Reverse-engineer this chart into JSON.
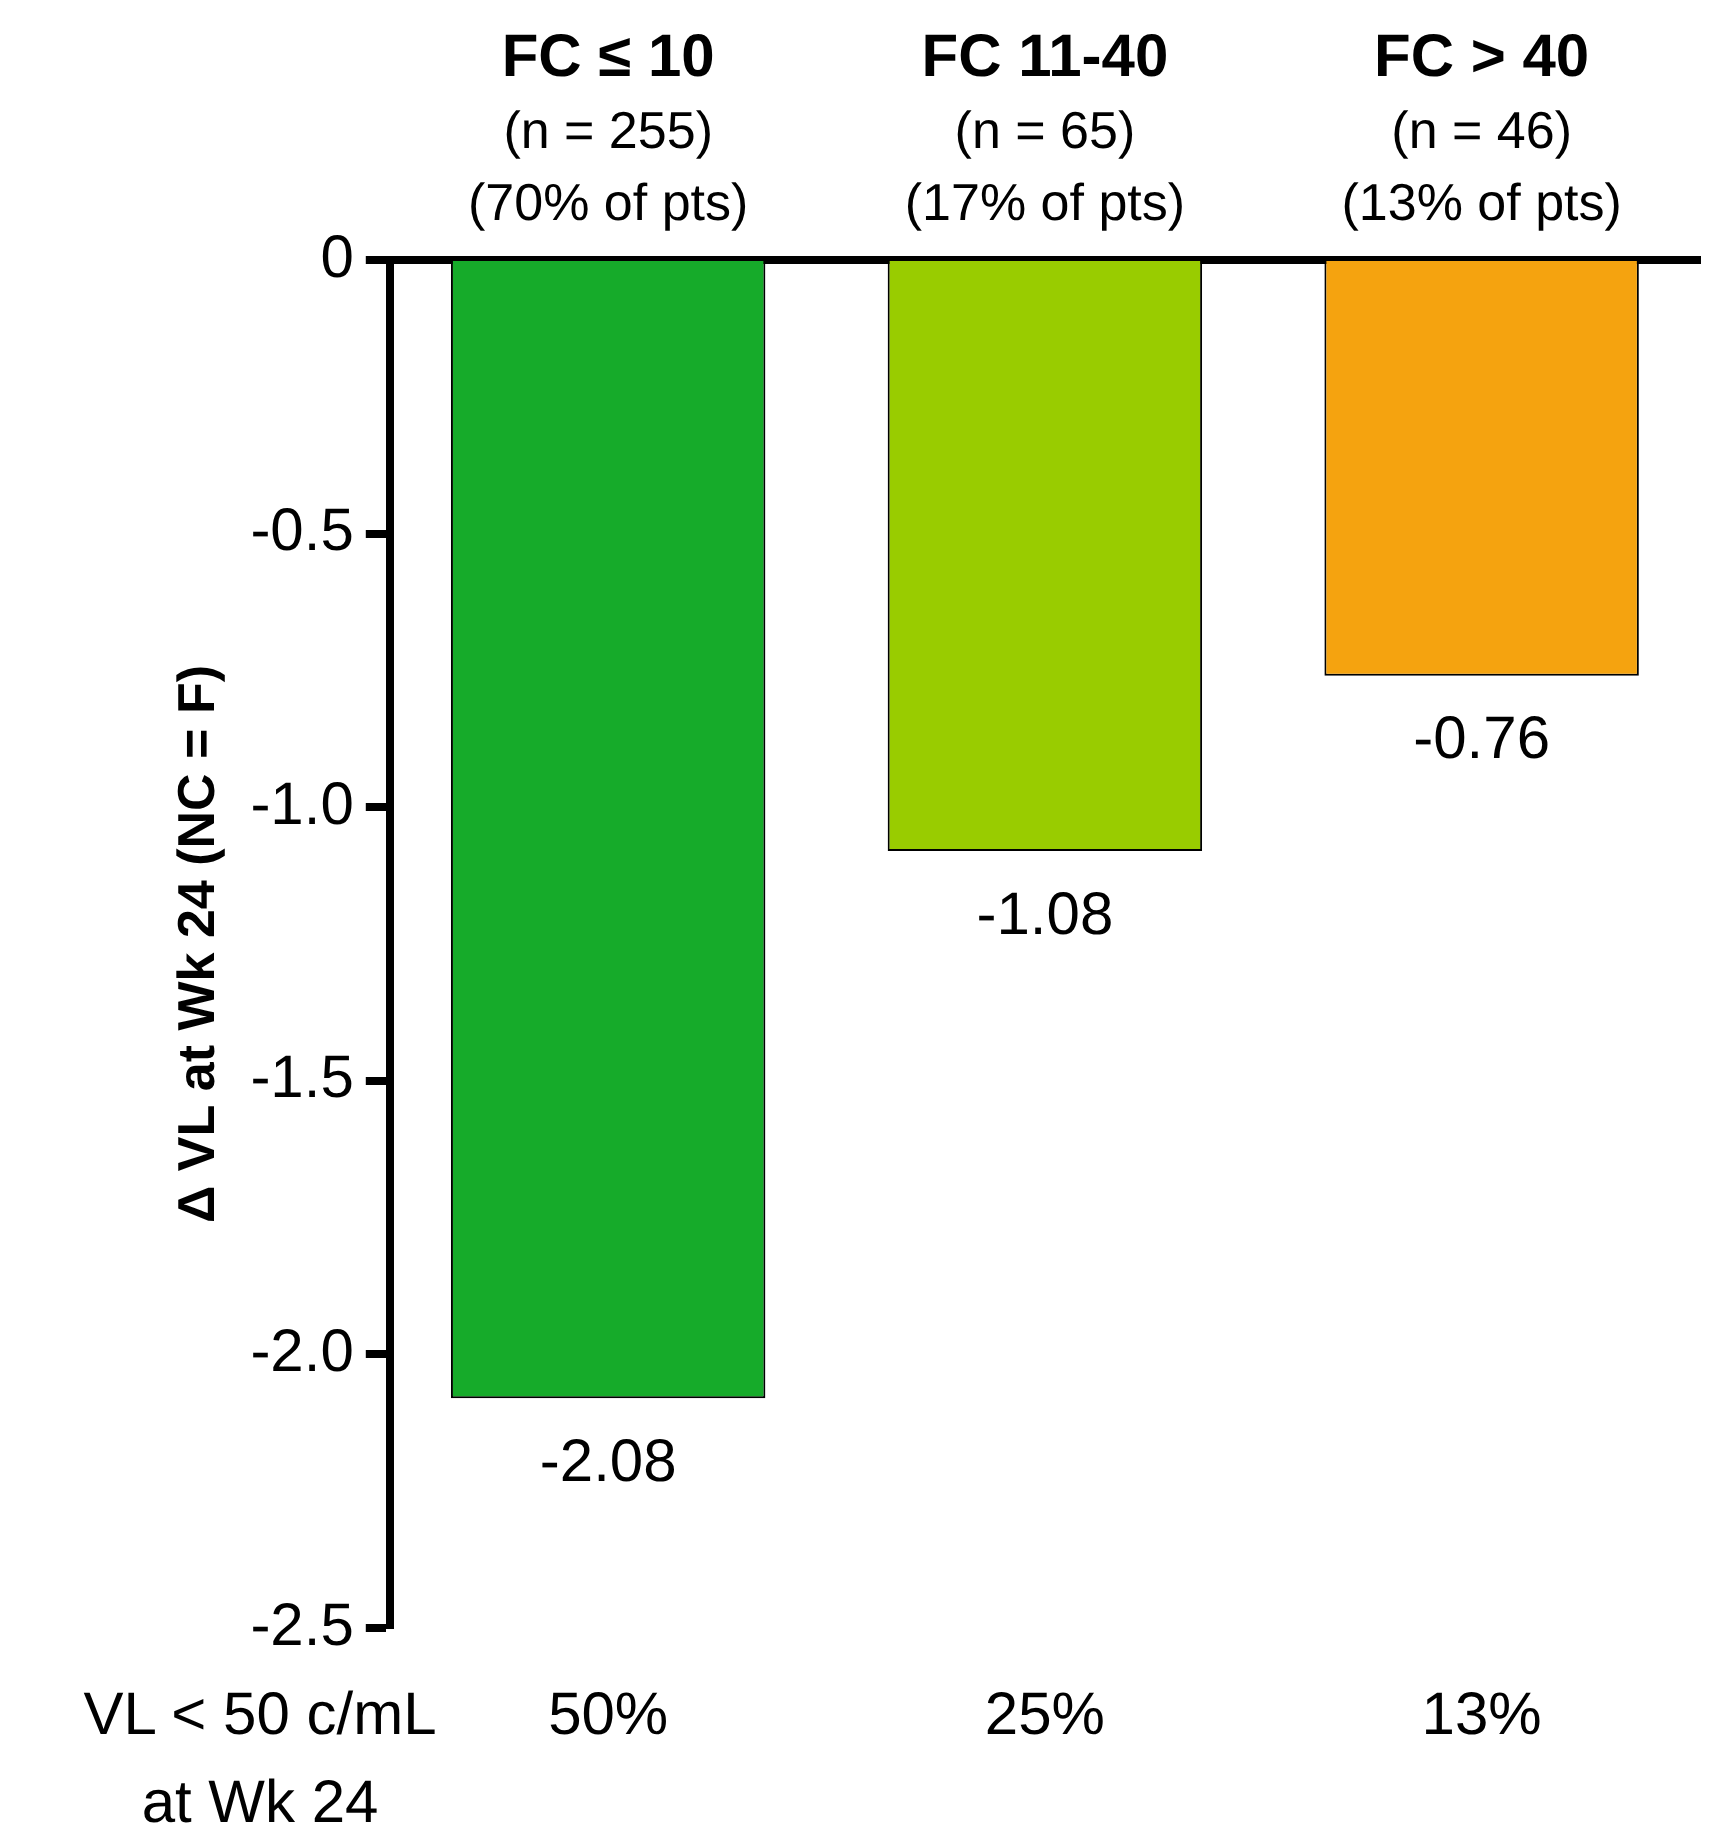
{
  "chart_data": {
    "type": "bar",
    "ylabel": "Δ VL at Wk 24 (NC = F)",
    "categories": [
      "FC ≤ 10\n(n = 255)\n(70% of pts)",
      "FC 11-40\n(n = 65)\n(17% of pts)",
      "FC > 40\n(n = 46)\n(13% of pts)"
    ],
    "values": [
      -2.08,
      -1.08,
      -0.76
    ],
    "colors": [
      "#16ab2a",
      "#99cc00",
      "#f5a30f"
    ],
    "ylim": [
      -2.5,
      0
    ],
    "yticks": [
      {
        "value": -2.5,
        "label": "-2.5"
      },
      {
        "value": -2,
        "label": "-2.0"
      },
      {
        "value": -1.5,
        "label": "-1.5"
      },
      {
        "value": -1,
        "label": "-1.0"
      },
      {
        "value": -0.5,
        "label": "-0.5"
      },
      0
    ],
    "data_labels": true,
    "grid": false,
    "legend": false,
    "annotations": [
      "VL < 50 c/mL\nat Wk 24",
      "50%",
      "25%",
      "13%"
    ]
  }
}
